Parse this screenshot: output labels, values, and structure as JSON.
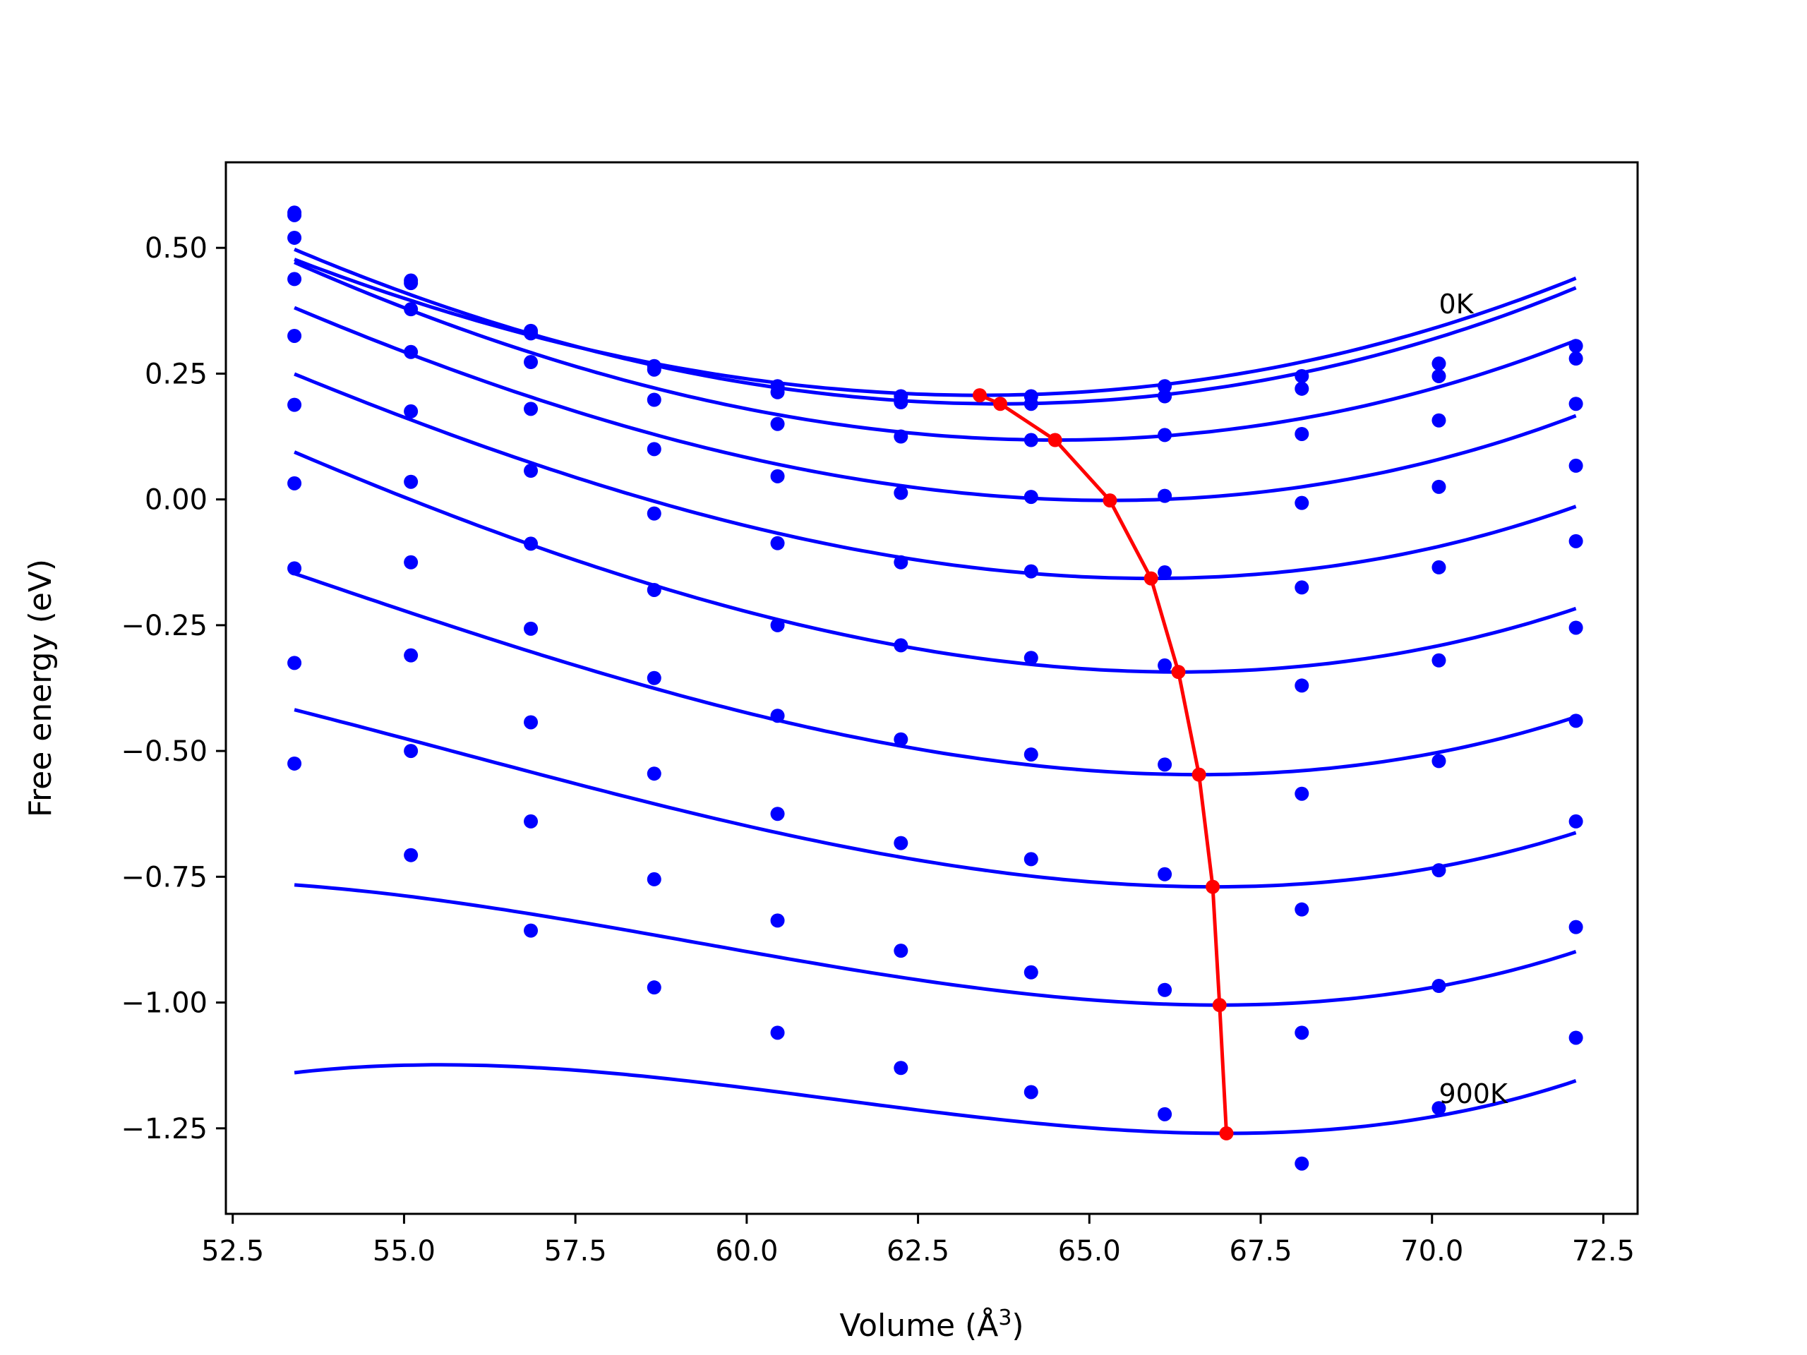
{
  "chart_data": {
    "type": "line",
    "xlabel": "Volume (Å",
    "xlabel_superscript": "3",
    "xlabel_close": ")",
    "ylabel": "Free energy (eV)",
    "xlim": [
      52.4,
      73.0
    ],
    "ylim": [
      -1.42,
      0.67
    ],
    "xticks": [
      52.5,
      55.0,
      57.5,
      60.0,
      62.5,
      65.0,
      67.5,
      70.0,
      72.5
    ],
    "xtick_labels": [
      "52.5",
      "55.0",
      "57.5",
      "60.0",
      "62.5",
      "65.0",
      "67.5",
      "70.0",
      "72.5"
    ],
    "yticks": [
      0.5,
      0.25,
      0.0,
      -0.25,
      -0.5,
      -0.75,
      -1.0,
      -1.25
    ],
    "ytick_labels": [
      "0.50",
      "0.25",
      "0.00",
      "−0.25",
      "−0.50",
      "−0.75",
      "−1.00",
      "−1.25"
    ],
    "grid": false,
    "legend": "none",
    "colors": {
      "data": "#0000ff",
      "fit": "#0000ff",
      "minimum": "#ff0000",
      "axes": "#000000"
    },
    "volumes": [
      53.4,
      55.1,
      56.85,
      58.65,
      60.45,
      62.25,
      64.15,
      66.1,
      68.1,
      70.1,
      72.1
    ],
    "annotations": [
      {
        "text": "0K",
        "x": 70.1,
        "y": 0.37
      },
      {
        "text": "900K",
        "x": 70.1,
        "y": -1.2
      }
    ],
    "series": [
      {
        "values": [
          0.57,
          0.435,
          0.335,
          0.265,
          0.225,
          0.205,
          0.205,
          0.225,
          0.245,
          0.27,
          0.305
        ],
        "fit": {
          "v0": 63.4,
          "e0": 0.207,
          "a": 0.0029,
          "b": 2e-05
        }
      },
      {
        "values": [
          0.565,
          0.43,
          0.33,
          0.258,
          0.213,
          0.193,
          0.19,
          0.205,
          0.22,
          0.245,
          0.28
        ],
        "fit": {
          "v0": 63.7,
          "e0": 0.19,
          "a": 0.0031,
          "b": 2e-05
        }
      },
      {
        "values": [
          0.52,
          0.378,
          0.273,
          0.198,
          0.15,
          0.125,
          0.118,
          0.128,
          0.13,
          0.157,
          0.19
        ],
        "fit": {
          "v0": 64.5,
          "e0": 0.118,
          "a": 0.0032,
          "b": 3e-05
        }
      },
      {
        "values": [
          0.438,
          0.293,
          0.18,
          0.1,
          0.046,
          0.013,
          0.005,
          0.007,
          -0.007,
          0.025,
          0.067
        ],
        "fit": {
          "v0": 65.3,
          "e0": -0.002,
          "a": 0.0033,
          "b": 5e-05
        }
      },
      {
        "values": [
          0.325,
          0.175,
          0.057,
          -0.028,
          -0.087,
          -0.125,
          -0.143,
          -0.145,
          -0.175,
          -0.135,
          -0.083
        ],
        "fit": {
          "v0": 65.9,
          "e0": -0.157,
          "a": 0.00335,
          "b": 6e-05
        }
      },
      {
        "values": [
          0.188,
          0.035,
          -0.088,
          -0.18,
          -0.25,
          -0.29,
          -0.315,
          -0.33,
          -0.37,
          -0.32,
          -0.255
        ],
        "fit": {
          "v0": 66.3,
          "e0": -0.343,
          "a": 0.0034,
          "b": 6e-05
        }
      },
      {
        "values": [
          0.032,
          -0.125,
          -0.257,
          -0.355,
          -0.43,
          -0.477,
          -0.507,
          -0.527,
          -0.585,
          -0.52,
          -0.44
        ],
        "fit": {
          "v0": 66.6,
          "e0": -0.547,
          "a": 0.00335,
          "b": 8e-05
        }
      },
      {
        "values": [
          -0.137,
          -0.31,
          -0.443,
          -0.545,
          -0.625,
          -0.683,
          -0.715,
          -0.745,
          -0.815,
          -0.737,
          -0.64
        ],
        "fit": {
          "v0": 66.8,
          "e0": -0.77,
          "a": 0.0033,
          "b": 0.0001
        }
      },
      {
        "values": [
          -0.325,
          -0.5,
          -0.64,
          -0.755,
          -0.837,
          -0.897,
          -0.94,
          -0.975,
          -1.06,
          -0.967,
          -0.85
        ],
        "fit": {
          "v0": 66.9,
          "e0": -1.005,
          "a": 0.0032,
          "b": 0.00014
        }
      },
      {
        "values": [
          -0.525,
          -0.707,
          -0.857,
          -0.97,
          -1.06,
          -1.13,
          -1.178,
          -1.222,
          -1.32,
          -1.21,
          -1.07
        ],
        "fit": {
          "v0": 67.0,
          "e0": -1.26,
          "a": 0.0031,
          "b": 0.00018
        }
      }
    ],
    "minimum_curve": {
      "x": [
        63.4,
        63.7,
        64.5,
        65.3,
        65.9,
        66.3,
        66.6,
        66.8,
        66.9,
        67.0
      ],
      "y": [
        0.207,
        0.19,
        0.118,
        -0.002,
        -0.157,
        -0.343,
        -0.547,
        -0.77,
        -1.005,
        -1.26
      ]
    }
  }
}
